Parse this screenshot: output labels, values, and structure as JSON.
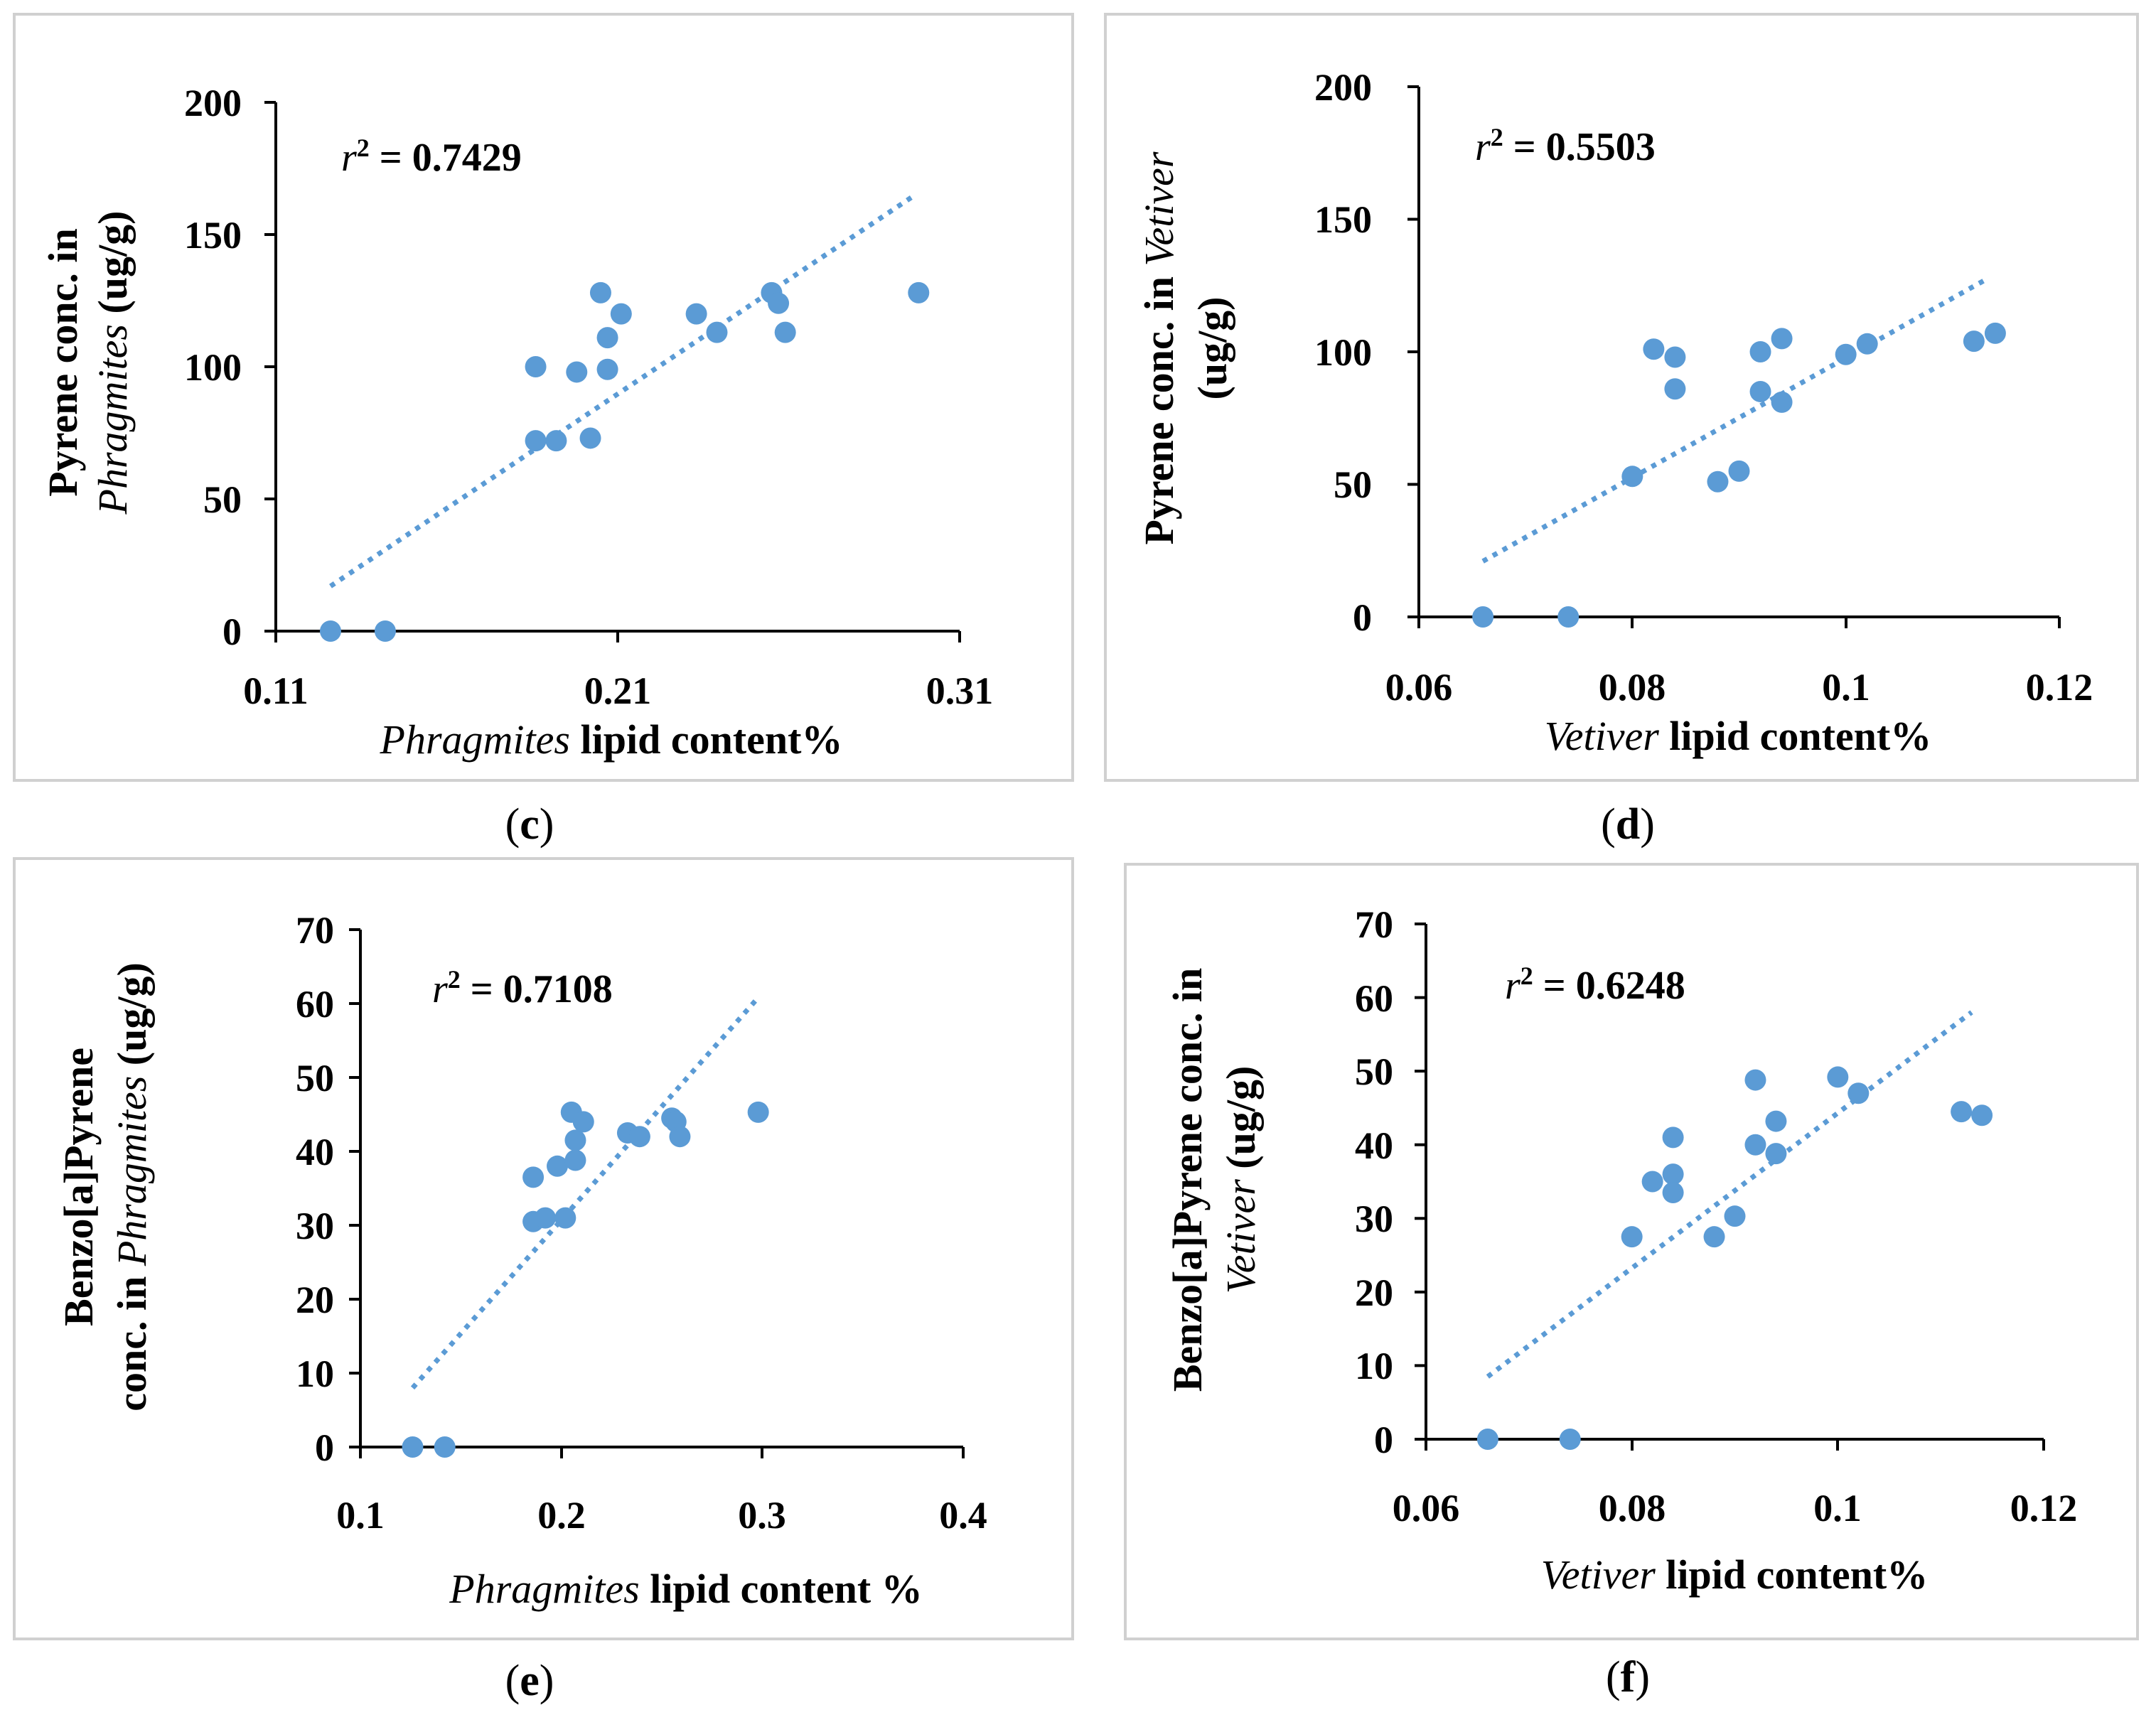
{
  "chart_data": [
    {
      "panel": "(c)",
      "panel_letter": "c",
      "type": "scatter",
      "r2": "r² = 0.7429",
      "r2_prefix": "r",
      "r2_value": "= 0.7429",
      "xlabel_italic": "Phragmites",
      "xlabel_rest": " lipid content%",
      "ylabel_line1": "Pyrene conc.  in",
      "ylabel_line2_italic": "Phragmites",
      "ylabel_line2_rest": " (ug/g)",
      "xlim": [
        0.11,
        0.31
      ],
      "ylim": [
        0,
        200
      ],
      "xticks": [
        0.11,
        0.21,
        0.31
      ],
      "yticks": [
        0,
        50,
        100,
        150,
        200
      ],
      "xtick_labels": [
        "0.11",
        "0.21",
        "0.31"
      ],
      "ytick_labels": [
        "0",
        "50",
        "100",
        "150",
        "200"
      ],
      "points": [
        [
          0.126,
          0
        ],
        [
          0.142,
          0
        ],
        [
          0.186,
          100
        ],
        [
          0.186,
          72
        ],
        [
          0.192,
          72
        ],
        [
          0.198,
          98
        ],
        [
          0.202,
          73
        ],
        [
          0.205,
          128
        ],
        [
          0.207,
          111
        ],
        [
          0.207,
          99
        ],
        [
          0.211,
          120
        ],
        [
          0.233,
          120
        ],
        [
          0.239,
          113
        ],
        [
          0.255,
          128
        ],
        [
          0.257,
          124
        ],
        [
          0.259,
          113
        ],
        [
          0.298,
          128
        ]
      ],
      "trendline": [
        [
          0.126,
          17
        ],
        [
          0.297,
          165
        ]
      ]
    },
    {
      "panel": "(d)",
      "panel_letter": "d",
      "type": "scatter",
      "r2": "r² = 0.5503",
      "r2_prefix": "r",
      "r2_value": "= 0.5503",
      "xlabel_italic": "Vetiver",
      "xlabel_rest": " lipid content%",
      "ylabel_line1_plain": "Pyrene conc. in ",
      "ylabel_line1_italic": "Vetiver",
      "ylabel_line2": "(ug/g)",
      "xlim": [
        0.06,
        0.12
      ],
      "ylim": [
        0,
        200
      ],
      "xticks": [
        0.06,
        0.08,
        0.1,
        0.12
      ],
      "yticks": [
        0,
        50,
        100,
        150,
        200
      ],
      "xtick_labels": [
        "0.06",
        "0.08",
        "0.1",
        "0.12"
      ],
      "ytick_labels": [
        "0",
        "50",
        "100",
        "150",
        "200"
      ],
      "points": [
        [
          0.066,
          0
        ],
        [
          0.074,
          0
        ],
        [
          0.08,
          53
        ],
        [
          0.082,
          101
        ],
        [
          0.084,
          98
        ],
        [
          0.084,
          86
        ],
        [
          0.088,
          51
        ],
        [
          0.09,
          55
        ],
        [
          0.092,
          100
        ],
        [
          0.092,
          85
        ],
        [
          0.094,
          105
        ],
        [
          0.094,
          81
        ],
        [
          0.1,
          99
        ],
        [
          0.102,
          103
        ],
        [
          0.112,
          104
        ],
        [
          0.114,
          107
        ]
      ],
      "trendline": [
        [
          0.066,
          21
        ],
        [
          0.113,
          127
        ]
      ]
    },
    {
      "panel": "(e)",
      "panel_letter": "e",
      "type": "scatter",
      "r2": "r² = 0.7108",
      "r2_prefix": "r",
      "r2_value": "= 0.7108",
      "xlabel_italic": "Phragmites",
      "xlabel_rest": " lipid content %",
      "ylabel_line1": "Benzo[a]Pyrene",
      "ylabel_line2_plain": "conc. in ",
      "ylabel_line2_italic": "Phragmites",
      "ylabel_line2_rest": " (ug/g)",
      "xlim": [
        0.1,
        0.4
      ],
      "ylim": [
        0,
        70
      ],
      "xticks": [
        0.1,
        0.2,
        0.3,
        0.4
      ],
      "yticks": [
        0,
        10,
        20,
        30,
        40,
        50,
        60,
        70
      ],
      "xtick_labels": [
        "0.1",
        "0.2",
        "0.3",
        "0.4"
      ],
      "ytick_labels": [
        "0",
        "10",
        "20",
        "30",
        "40",
        "50",
        "60",
        "70"
      ],
      "points": [
        [
          0.126,
          0
        ],
        [
          0.142,
          0
        ],
        [
          0.186,
          36.5
        ],
        [
          0.186,
          30.5
        ],
        [
          0.192,
          31
        ],
        [
          0.198,
          38
        ],
        [
          0.202,
          31
        ],
        [
          0.205,
          45.3
        ],
        [
          0.207,
          41.5
        ],
        [
          0.207,
          38.8
        ],
        [
          0.211,
          44
        ],
        [
          0.233,
          42.5
        ],
        [
          0.239,
          42
        ],
        [
          0.255,
          44.5
        ],
        [
          0.257,
          44
        ],
        [
          0.259,
          42
        ],
        [
          0.298,
          45.3
        ]
      ],
      "trendline": [
        [
          0.126,
          8
        ],
        [
          0.297,
          60.5
        ]
      ]
    },
    {
      "panel": "(f)",
      "panel_letter": "f",
      "type": "scatter",
      "r2": "r² = 0.6248",
      "r2_prefix": "r",
      "r2_value": "= 0.6248",
      "xlabel_italic": "Vetiver",
      "xlabel_rest": " lipid content%",
      "ylabel_line1": "Benzo[a]Pyrene conc. in",
      "ylabel_line2_italic": "Vetiver",
      "ylabel_line2_rest": " (ug/g)",
      "xlim": [
        0.06,
        0.12
      ],
      "ylim": [
        0,
        70
      ],
      "xticks": [
        0.06,
        0.08,
        0.1,
        0.12
      ],
      "yticks": [
        0,
        10,
        20,
        30,
        40,
        50,
        60,
        70
      ],
      "xtick_labels": [
        "0.06",
        "0.08",
        "0.1",
        "0.12"
      ],
      "ytick_labels": [
        "0",
        "10",
        "20",
        "30",
        "40",
        "50",
        "60",
        "70"
      ],
      "points": [
        [
          0.066,
          0
        ],
        [
          0.074,
          0
        ],
        [
          0.08,
          27.5
        ],
        [
          0.082,
          35
        ],
        [
          0.084,
          41
        ],
        [
          0.084,
          36
        ],
        [
          0.084,
          33.5
        ],
        [
          0.088,
          27.5
        ],
        [
          0.09,
          30.3
        ],
        [
          0.092,
          48.8
        ],
        [
          0.092,
          40
        ],
        [
          0.094,
          43.2
        ],
        [
          0.094,
          38.8
        ],
        [
          0.1,
          49.2
        ],
        [
          0.102,
          47
        ],
        [
          0.112,
          44.5
        ],
        [
          0.114,
          44
        ]
      ],
      "trendline": [
        [
          0.066,
          8.5
        ],
        [
          0.113,
          58
        ]
      ]
    }
  ],
  "colors": {
    "marker": "#5b9bd5",
    "trendline": "#5b9bd5",
    "axis": "#000000",
    "frame": "#d0d0d0"
  }
}
